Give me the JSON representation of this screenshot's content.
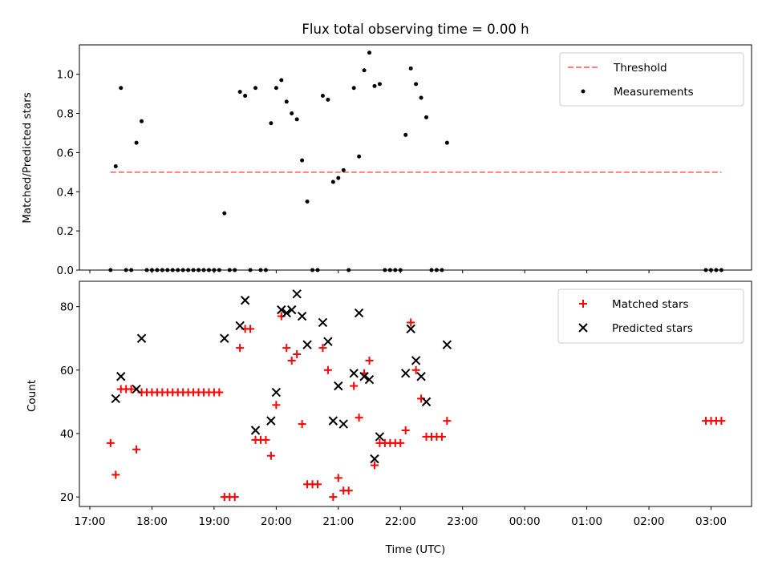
{
  "chart_data": [
    {
      "type": "scatter",
      "title": "Flux total observing time = 0.00 h",
      "xlabel": "",
      "ylabel": "Matched/Predicted stars",
      "ylim": [
        0,
        1.15
      ],
      "xlim": [
        "16:50",
        "03:40"
      ],
      "yticks": [
        "0.0",
        "0.2",
        "0.4",
        "0.6",
        "0.8",
        "1.0"
      ],
      "legend_position": "top-right",
      "series": [
        {
          "name": "Threshold",
          "style": "dashed-line",
          "color": "#ff7f7f",
          "points": [
            [
              "17:20",
              0.5
            ],
            [
              "03:10",
              0.5
            ]
          ]
        },
        {
          "name": "Measurements",
          "style": "dot",
          "color": "#000000",
          "points": [
            [
              "17:20",
              0.0
            ],
            [
              "17:25",
              0.53
            ],
            [
              "17:30",
              0.93
            ],
            [
              "17:35",
              0.0
            ],
            [
              "17:40",
              0.0
            ],
            [
              "17:45",
              0.65
            ],
            [
              "17:50",
              0.76
            ],
            [
              "17:55",
              0.0
            ],
            [
              "18:00",
              0.0
            ],
            [
              "18:05",
              0.0
            ],
            [
              "18:10",
              0.0
            ],
            [
              "18:15",
              0.0
            ],
            [
              "18:20",
              0.0
            ],
            [
              "18:25",
              0.0
            ],
            [
              "18:30",
              0.0
            ],
            [
              "18:35",
              0.0
            ],
            [
              "18:40",
              0.0
            ],
            [
              "18:45",
              0.0
            ],
            [
              "18:50",
              0.0
            ],
            [
              "18:55",
              0.0
            ],
            [
              "19:00",
              0.0
            ],
            [
              "19:05",
              0.0
            ],
            [
              "19:10",
              0.29
            ],
            [
              "19:15",
              0.0
            ],
            [
              "19:20",
              0.0
            ],
            [
              "19:25",
              0.91
            ],
            [
              "19:30",
              0.89
            ],
            [
              "19:35",
              0.0
            ],
            [
              "19:40",
              0.93
            ],
            [
              "19:45",
              0.0
            ],
            [
              "19:50",
              0.0
            ],
            [
              "19:55",
              0.75
            ],
            [
              "20:00",
              0.93
            ],
            [
              "20:05",
              0.97
            ],
            [
              "20:10",
              0.86
            ],
            [
              "20:15",
              0.8
            ],
            [
              "20:20",
              0.77
            ],
            [
              "20:25",
              0.56
            ],
            [
              "20:30",
              0.35
            ],
            [
              "20:35",
              0.0
            ],
            [
              "20:40",
              0.0
            ],
            [
              "20:45",
              0.89
            ],
            [
              "20:50",
              0.87
            ],
            [
              "20:55",
              0.45
            ],
            [
              "21:00",
              0.47
            ],
            [
              "21:05",
              0.51
            ],
            [
              "21:10",
              0.0
            ],
            [
              "21:15",
              0.93
            ],
            [
              "21:20",
              0.58
            ],
            [
              "21:25",
              1.02
            ],
            [
              "21:30",
              1.11
            ],
            [
              "21:35",
              0.94
            ],
            [
              "21:40",
              0.95
            ],
            [
              "21:45",
              0.0
            ],
            [
              "21:50",
              0.0
            ],
            [
              "21:55",
              0.0
            ],
            [
              "22:00",
              0.0
            ],
            [
              "22:05",
              0.69
            ],
            [
              "22:10",
              1.03
            ],
            [
              "22:15",
              0.95
            ],
            [
              "22:20",
              0.88
            ],
            [
              "22:25",
              0.78
            ],
            [
              "22:30",
              0.0
            ],
            [
              "22:35",
              0.0
            ],
            [
              "22:40",
              0.0
            ],
            [
              "22:45",
              0.65
            ],
            [
              "02:55",
              0.0
            ],
            [
              "03:00",
              0.0
            ],
            [
              "03:05",
              0.0
            ],
            [
              "03:10",
              0.0
            ]
          ]
        }
      ]
    },
    {
      "type": "scatter",
      "title": "",
      "xlabel": "Time (UTC)",
      "ylabel": "Count",
      "ylim": [
        17,
        88
      ],
      "xlim": [
        "16:50",
        "03:40"
      ],
      "xticks": [
        "17:00",
        "18:00",
        "19:00",
        "20:00",
        "21:00",
        "22:00",
        "23:00",
        "00:00",
        "01:00",
        "02:00",
        "03:00"
      ],
      "yticks": [
        "20",
        "40",
        "60",
        "80"
      ],
      "legend_position": "top-right",
      "series": [
        {
          "name": "Matched stars",
          "marker": "+",
          "color": "#ff0000",
          "points": [
            [
              "17:20",
              37
            ],
            [
              "17:25",
              27
            ],
            [
              "17:30",
              54
            ],
            [
              "17:35",
              54
            ],
            [
              "17:40",
              54
            ],
            [
              "17:45",
              35
            ],
            [
              "17:50",
              53
            ],
            [
              "17:55",
              53
            ],
            [
              "18:00",
              53
            ],
            [
              "18:05",
              53
            ],
            [
              "18:10",
              53
            ],
            [
              "18:15",
              53
            ],
            [
              "18:20",
              53
            ],
            [
              "18:25",
              53
            ],
            [
              "18:30",
              53
            ],
            [
              "18:35",
              53
            ],
            [
              "18:40",
              53
            ],
            [
              "18:45",
              53
            ],
            [
              "18:50",
              53
            ],
            [
              "18:55",
              53
            ],
            [
              "19:00",
              53
            ],
            [
              "19:05",
              53
            ],
            [
              "19:10",
              20
            ],
            [
              "19:15",
              20
            ],
            [
              "19:20",
              20
            ],
            [
              "19:25",
              67
            ],
            [
              "19:30",
              73
            ],
            [
              "19:35",
              73
            ],
            [
              "19:40",
              38
            ],
            [
              "19:45",
              38
            ],
            [
              "19:50",
              38
            ],
            [
              "19:55",
              33
            ],
            [
              "20:00",
              49
            ],
            [
              "20:05",
              77
            ],
            [
              "20:10",
              67
            ],
            [
              "20:15",
              63
            ],
            [
              "20:20",
              65
            ],
            [
              "20:25",
              43
            ],
            [
              "20:30",
              24
            ],
            [
              "20:35",
              24
            ],
            [
              "20:40",
              24
            ],
            [
              "20:45",
              67
            ],
            [
              "20:50",
              60
            ],
            [
              "20:55",
              20
            ],
            [
              "21:00",
              26
            ],
            [
              "21:05",
              22
            ],
            [
              "21:10",
              22
            ],
            [
              "21:15",
              55
            ],
            [
              "21:20",
              45
            ],
            [
              "21:25",
              59
            ],
            [
              "21:30",
              63
            ],
            [
              "21:35",
              30
            ],
            [
              "21:40",
              37
            ],
            [
              "21:45",
              37
            ],
            [
              "21:50",
              37
            ],
            [
              "21:55",
              37
            ],
            [
              "22:00",
              37
            ],
            [
              "22:05",
              41
            ],
            [
              "22:10",
              75
            ],
            [
              "22:15",
              60
            ],
            [
              "22:20",
              51
            ],
            [
              "22:25",
              39
            ],
            [
              "22:30",
              39
            ],
            [
              "22:35",
              39
            ],
            [
              "22:40",
              39
            ],
            [
              "22:45",
              44
            ],
            [
              "02:55",
              44
            ],
            [
              "03:00",
              44
            ],
            [
              "03:05",
              44
            ],
            [
              "03:10",
              44
            ]
          ]
        },
        {
          "name": "Predicted stars",
          "marker": "x",
          "color": "#000000",
          "points": [
            [
              "17:25",
              51
            ],
            [
              "17:30",
              58
            ],
            [
              "17:45",
              54
            ],
            [
              "17:50",
              70
            ],
            [
              "19:10",
              70
            ],
            [
              "19:25",
              74
            ],
            [
              "19:30",
              82
            ],
            [
              "19:40",
              41
            ],
            [
              "19:55",
              44
            ],
            [
              "20:00",
              53
            ],
            [
              "20:05",
              79
            ],
            [
              "20:10",
              78
            ],
            [
              "20:15",
              79
            ],
            [
              "20:20",
              84
            ],
            [
              "20:25",
              77
            ],
            [
              "20:30",
              68
            ],
            [
              "20:45",
              75
            ],
            [
              "20:50",
              69
            ],
            [
              "20:55",
              44
            ],
            [
              "21:00",
              55
            ],
            [
              "21:05",
              43
            ],
            [
              "21:15",
              59
            ],
            [
              "21:20",
              78
            ],
            [
              "21:25",
              58
            ],
            [
              "21:30",
              57
            ],
            [
              "21:35",
              32
            ],
            [
              "21:40",
              39
            ],
            [
              "22:05",
              59
            ],
            [
              "22:10",
              73
            ],
            [
              "22:15",
              63
            ],
            [
              "22:20",
              58
            ],
            [
              "22:25",
              50
            ],
            [
              "22:45",
              68
            ]
          ]
        }
      ]
    }
  ]
}
